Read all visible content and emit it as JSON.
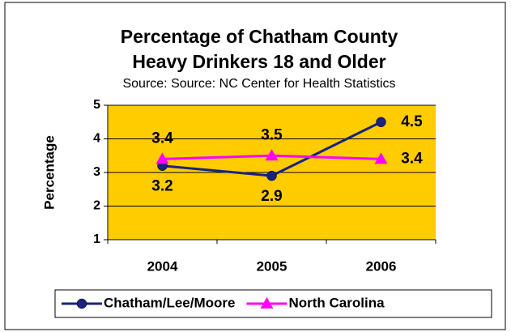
{
  "chart_data": {
    "type": "line",
    "title": [
      "Percentage of Chatham County",
      "Heavy Drinkers 18 and Older"
    ],
    "subtitle": "Source: Source: NC Center for Health Statistics",
    "y_label": "Percentage",
    "categories": [
      "2004",
      "2005",
      "2006"
    ],
    "series": [
      {
        "name": "Chatham/Lee/Moore",
        "color": "#1a237e",
        "marker": "circle",
        "values": [
          3.2,
          2.9,
          4.5
        ]
      },
      {
        "name": "North Carolina",
        "color": "#ff00ff",
        "marker": "triangle",
        "values": [
          3.4,
          3.5,
          3.4
        ]
      }
    ],
    "ylim": [
      1,
      5
    ],
    "yticks": [
      1,
      2,
      3,
      4,
      5
    ],
    "grid": true,
    "legend": "bottom",
    "plot_color": "#ffcc00"
  }
}
